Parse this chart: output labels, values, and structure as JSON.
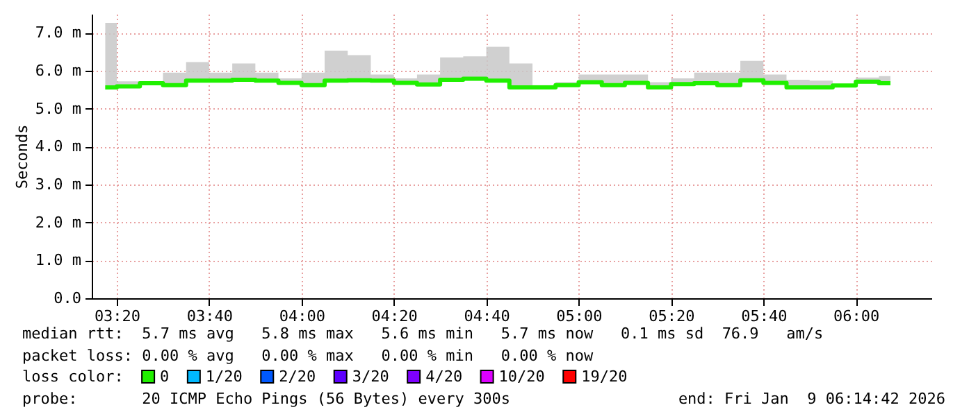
{
  "chart_data": {
    "type": "step",
    "ylabel": "Seconds",
    "x": [
      3.2917,
      3.375,
      3.4583,
      3.5417,
      3.625,
      3.7083,
      3.7917,
      3.875,
      3.9583,
      4.0417,
      4.125,
      4.2083,
      4.2917,
      4.375,
      4.4583,
      4.5417,
      4.625,
      4.7083,
      4.7917,
      4.875,
      4.9583,
      5.0417,
      5.125,
      5.2083,
      5.2917,
      5.375,
      5.4583,
      5.5417,
      5.625,
      5.7083,
      5.7917,
      5.875,
      5.9583,
      6.0417,
      6.125
    ],
    "series": [
      {
        "name": "0",
        "color": "#20f000",
        "values": [
          5.56,
          5.59,
          5.67,
          5.62,
          5.74,
          5.74,
          5.76,
          5.74,
          5.68,
          5.62,
          5.74,
          5.75,
          5.74,
          5.68,
          5.64,
          5.76,
          5.79,
          5.74,
          5.56,
          5.56,
          5.62,
          5.7,
          5.62,
          5.68,
          5.56,
          5.65,
          5.67,
          5.62,
          5.75,
          5.68,
          5.56,
          5.56,
          5.61,
          5.71,
          5.67
        ],
        "lower": [
          5.5,
          5.54,
          5.62,
          5.57,
          5.69,
          5.69,
          5.71,
          5.69,
          5.63,
          5.57,
          5.69,
          5.7,
          5.69,
          5.63,
          5.59,
          5.71,
          5.74,
          5.69,
          5.51,
          5.51,
          5.57,
          5.65,
          5.57,
          5.63,
          5.51,
          5.6,
          5.62,
          5.57,
          5.7,
          5.63,
          5.51,
          5.51,
          5.56,
          5.66,
          5.62
        ],
        "upper": [
          7.26,
          5.72,
          5.72,
          5.95,
          6.23,
          5.95,
          6.19,
          5.95,
          5.8,
          5.95,
          6.53,
          6.41,
          5.9,
          5.8,
          5.9,
          6.35,
          6.38,
          6.63,
          6.19,
          5.62,
          5.7,
          5.9,
          5.9,
          5.9,
          5.7,
          5.8,
          5.95,
          5.95,
          6.26,
          5.9,
          5.76,
          5.74,
          5.65,
          5.82,
          5.86
        ]
      },
      {
        "name": "1/20",
        "color": "#00b8ff",
        "values": [
          null,
          null,
          null,
          null,
          null,
          null,
          null,
          null,
          null,
          null,
          null,
          null,
          null,
          null,
          null,
          null,
          null,
          null,
          null,
          null,
          null,
          null,
          null,
          null,
          null,
          null,
          null,
          null,
          null,
          null,
          null,
          null,
          null,
          null,
          null
        ]
      },
      {
        "name": "2/20",
        "color": "#0059ff",
        "values": [
          null,
          null,
          null,
          null,
          null,
          null,
          null,
          null,
          null,
          null,
          null,
          null,
          null,
          null,
          null,
          null,
          null,
          null,
          null,
          null,
          null,
          null,
          null,
          null,
          null,
          null,
          null,
          null,
          null,
          null,
          null,
          null,
          null,
          null,
          null
        ]
      },
      {
        "name": "3/20",
        "color": "#5e00ff",
        "values": [
          null,
          null,
          null,
          null,
          null,
          null,
          null,
          null,
          null,
          null,
          null,
          null,
          null,
          null,
          null,
          null,
          null,
          null,
          null,
          null,
          null,
          null,
          null,
          null,
          null,
          null,
          null,
          null,
          null,
          null,
          null,
          null,
          null,
          null,
          null
        ]
      },
      {
        "name": "4/20",
        "color": "#7e00ff",
        "values": [
          null,
          null,
          null,
          null,
          null,
          null,
          null,
          null,
          null,
          null,
          null,
          null,
          null,
          null,
          null,
          null,
          null,
          null,
          null,
          null,
          null,
          null,
          null,
          null,
          null,
          null,
          null,
          null,
          null,
          null,
          null,
          null,
          null,
          null,
          null
        ]
      },
      {
        "name": "10/20",
        "color": "#dd00ff",
        "values": [
          null,
          null,
          null,
          null,
          null,
          null,
          null,
          null,
          null,
          null,
          null,
          null,
          null,
          null,
          null,
          null,
          null,
          null,
          null,
          null,
          null,
          null,
          null,
          null,
          null,
          null,
          null,
          null,
          null,
          null,
          null,
          null,
          null,
          null,
          null
        ]
      },
      {
        "name": "19/20",
        "color": "#ff0000",
        "values": [
          null,
          null,
          null,
          null,
          null,
          null,
          null,
          null,
          null,
          null,
          null,
          null,
          null,
          null,
          null,
          null,
          null,
          null,
          null,
          null,
          null,
          null,
          null,
          null,
          null,
          null,
          null,
          null,
          null,
          null,
          null,
          null,
          null,
          null,
          null
        ]
      }
    ],
    "legend_title": "loss color:",
    "legend": "bottom",
    "xlim": [
      3.243,
      6.273
    ],
    "xticks": [
      {
        "value": 3.3333,
        "label": "03:20"
      },
      {
        "value": 3.6667,
        "label": "03:40"
      },
      {
        "value": 4,
        "label": "04:00"
      },
      {
        "value": 4.3333,
        "label": "04:20"
      },
      {
        "value": 4.6667,
        "label": "04:40"
      },
      {
        "value": 5,
        "label": "05:00"
      },
      {
        "value": 5.3333,
        "label": "05:20"
      },
      {
        "value": 5.6667,
        "label": "05:40"
      },
      {
        "value": 6,
        "label": "06:00"
      }
    ],
    "ylim": [
      0,
      7.5
    ],
    "yticks": [
      {
        "value": 0,
        "label": "0.0"
      },
      {
        "value": 1,
        "label": "1.0 m"
      },
      {
        "value": 2,
        "label": "2.0 m"
      },
      {
        "value": 3,
        "label": "3.0 m"
      },
      {
        "value": 4,
        "label": "4.0 m"
      },
      {
        "value": 5,
        "label": "5.0 m"
      },
      {
        "value": 6,
        "label": "6.0 m"
      },
      {
        "value": 7,
        "label": "7.0 m"
      }
    ],
    "grid": true,
    "annotations": [
      "median rtt:  5.7 ms avg   5.8 ms max   5.6 ms min   5.7 ms now   0.1 ms sd  76.9   am/s",
      "packet loss: 0.00 % avg   0.00 % max   0.00 % min   0.00 % now",
      "probe:       20 ICMP Echo Pings (56 Bytes) every 300s",
      "end: Fri Jan  9 06:14:42 2026"
    ]
  }
}
